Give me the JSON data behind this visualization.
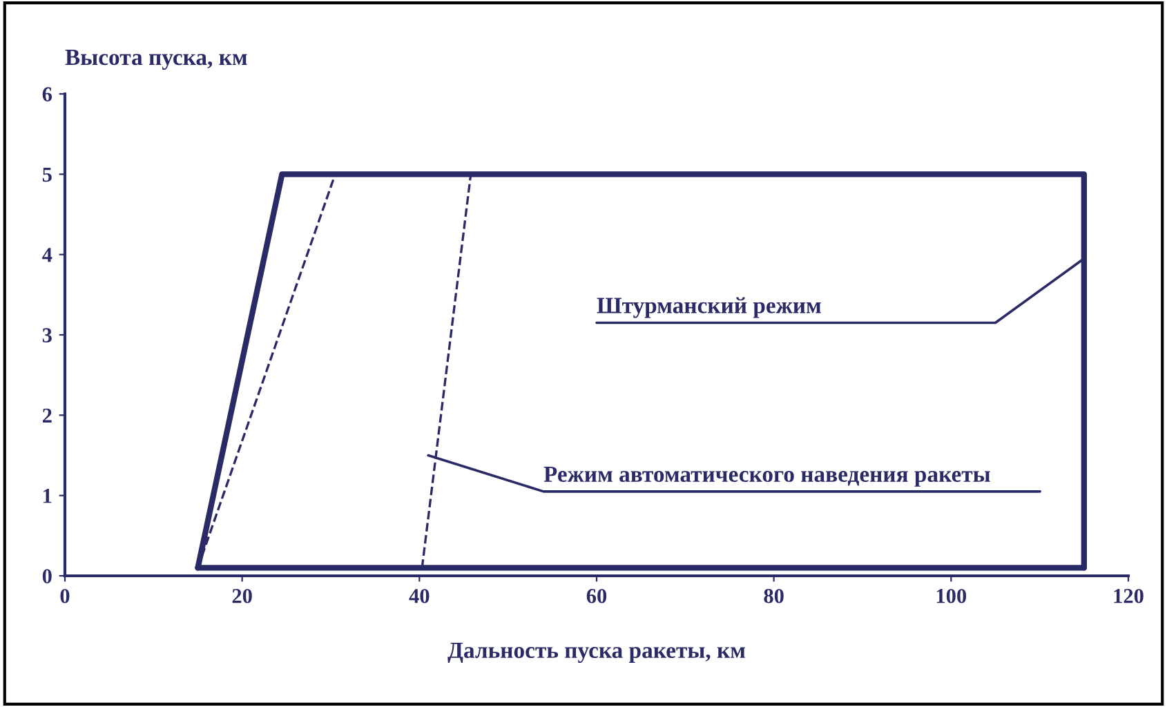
{
  "chart_data": {
    "type": "line",
    "xlabel": "Дальность пуска ракеты, км",
    "ylabel": "Высота пуска, км",
    "xlim": [
      0,
      120
    ],
    "xticks": [
      0,
      20,
      40,
      60,
      80,
      100,
      120
    ],
    "ylim": [
      0,
      6
    ],
    "yticks": [
      0,
      1,
      2,
      3,
      4,
      5,
      6
    ],
    "grid": false,
    "legend": false,
    "marker": "none",
    "series": [
      {
        "color": "#2a2a66",
        "line_style": "solid",
        "x": [
          15,
          24.5,
          115,
          115
        ],
        "values": [
          0.1,
          5,
          5,
          0.1
        ]
      },
      {
        "color": "#2a2a66",
        "line_style": "solid",
        "x": [
          15,
          115
        ],
        "values": [
          0.1,
          0.1
        ]
      },
      {
        "color": "#2a2a66",
        "line_style": "dashed",
        "x": [
          15,
          30.5
        ],
        "values": [
          0.1,
          5
        ]
      },
      {
        "color": "#2a2a66",
        "line_style": "dashed",
        "x": [
          40.3,
          45.8
        ],
        "values": [
          0.1,
          5
        ]
      }
    ],
    "annotations": [
      {
        "text": "Штурманский режим",
        "x": 115,
        "y": 3.95
      },
      {
        "text": "Режим автоматического наведения ракеты",
        "x": 41,
        "y": 1.5
      }
    ]
  }
}
